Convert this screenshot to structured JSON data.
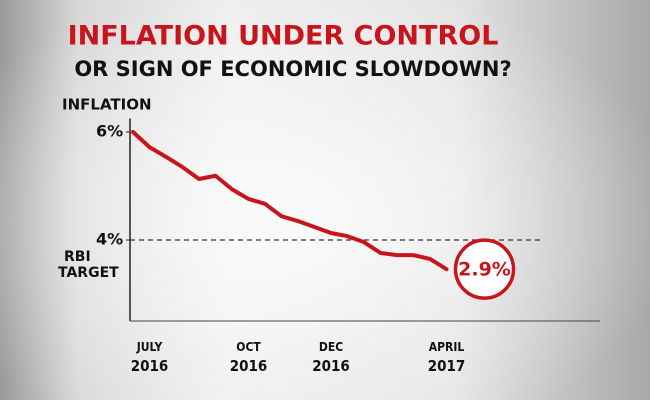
{
  "chart_data": {
    "type": "line",
    "title": "INFLATION UNDER CONTROL",
    "subtitle": "OR SIGN OF ECONOMIC SLOWDOWN?",
    "y_label": "INFLATION",
    "categories": [
      null,
      "JULY 2016",
      null,
      null,
      null,
      null,
      null,
      "OCT 2016",
      null,
      null,
      null,
      null,
      "DEC 2016",
      null,
      null,
      null,
      null,
      null,
      null,
      "APRIL 2017"
    ],
    "values": [
      6.0,
      5.72,
      5.54,
      5.35,
      5.13,
      5.19,
      4.94,
      4.76,
      4.67,
      4.44,
      4.35,
      4.24,
      4.13,
      4.07,
      3.96,
      3.76,
      3.72,
      3.72,
      3.65,
      3.46
    ],
    "color": "#c8151b",
    "ylim": [
      2.5,
      6.25
    ],
    "yticks": [
      {
        "value": 4,
        "label": "4%"
      },
      {
        "value": 6,
        "label": "6%"
      }
    ],
    "reference_line": {
      "value": 4,
      "label": "RBI TARGET"
    },
    "annotation": "2.9%"
  }
}
